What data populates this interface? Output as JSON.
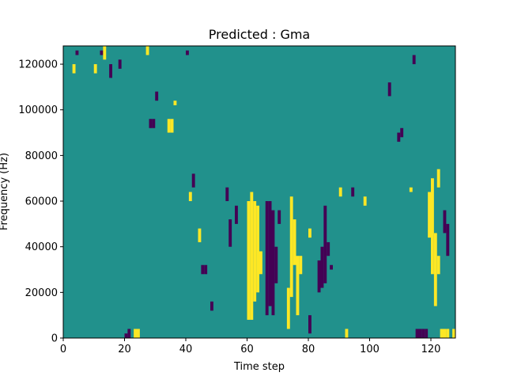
{
  "chart_data": {
    "type": "heatmap",
    "title": "Predicted : Gma",
    "xlabel": "Time step",
    "ylabel": "Frequency (Hz)",
    "xlim": [
      0,
      128
    ],
    "ylim": [
      0,
      128000
    ],
    "x_ticks": [
      0,
      20,
      40,
      60,
      80,
      100,
      120
    ],
    "y_ticks": [
      0,
      20000,
      40000,
      60000,
      80000,
      100000,
      120000
    ],
    "x_tick_labels": [
      "0",
      "20",
      "40",
      "60",
      "80",
      "100",
      "120"
    ],
    "y_tick_labels": [
      "0",
      "20000",
      "40000",
      "60000",
      "80000",
      "100000",
      "120000"
    ],
    "grid": false,
    "colormap": "viridis",
    "cell_height_hz": 2000,
    "colors": {
      "background": "#21918c",
      "low": "#440154",
      "high": "#fde725"
    },
    "low_cells": [
      {
        "t": 20,
        "f_start": 0,
        "f_end": 2000
      },
      {
        "t": 21,
        "f_start": 0,
        "f_end": 4000
      },
      {
        "t": 115,
        "f_start": 0,
        "f_end": 4000
      },
      {
        "t": 116,
        "f_start": 0,
        "f_end": 4000
      },
      {
        "t": 117,
        "f_start": 0,
        "f_end": 4000
      },
      {
        "t": 118,
        "f_start": 0,
        "f_end": 4000
      },
      {
        "t": 4,
        "f_start": 124000,
        "f_end": 126000
      },
      {
        "t": 12,
        "f_start": 124000,
        "f_end": 126000
      },
      {
        "t": 15,
        "f_start": 114000,
        "f_end": 120000
      },
      {
        "t": 18,
        "f_start": 118000,
        "f_end": 122000
      },
      {
        "t": 28,
        "f_start": 92000,
        "f_end": 96000
      },
      {
        "t": 29,
        "f_start": 92000,
        "f_end": 96000
      },
      {
        "t": 30,
        "f_start": 104000,
        "f_end": 108000
      },
      {
        "t": 40,
        "f_start": 124000,
        "f_end": 126000
      },
      {
        "t": 42,
        "f_start": 66000,
        "f_end": 72000
      },
      {
        "t": 45,
        "f_start": 28000,
        "f_end": 32000
      },
      {
        "t": 46,
        "f_start": 28000,
        "f_end": 32000
      },
      {
        "t": 48,
        "f_start": 12000,
        "f_end": 16000
      },
      {
        "t": 53,
        "f_start": 60000,
        "f_end": 66000
      },
      {
        "t": 54,
        "f_start": 40000,
        "f_end": 52000
      },
      {
        "t": 56,
        "f_start": 50000,
        "f_end": 58000
      },
      {
        "t": 66,
        "f_start": 10000,
        "f_end": 60000
      },
      {
        "t": 67,
        "f_start": 14000,
        "f_end": 60000
      },
      {
        "t": 68,
        "f_start": 10000,
        "f_end": 56000
      },
      {
        "t": 69,
        "f_start": 24000,
        "f_end": 40000
      },
      {
        "t": 70,
        "f_start": 50000,
        "f_end": 56000
      },
      {
        "t": 80,
        "f_start": 2000,
        "f_end": 10000
      },
      {
        "t": 83,
        "f_start": 20000,
        "f_end": 34000
      },
      {
        "t": 84,
        "f_start": 22000,
        "f_end": 40000
      },
      {
        "t": 85,
        "f_start": 24000,
        "f_end": 58000
      },
      {
        "t": 86,
        "f_start": 36000,
        "f_end": 42000
      },
      {
        "t": 87,
        "f_start": 30000,
        "f_end": 32000
      },
      {
        "t": 94,
        "f_start": 62000,
        "f_end": 66000
      },
      {
        "t": 106,
        "f_start": 106000,
        "f_end": 112000
      },
      {
        "t": 109,
        "f_start": 86000,
        "f_end": 90000
      },
      {
        "t": 110,
        "f_start": 88000,
        "f_end": 92000
      },
      {
        "t": 114,
        "f_start": 120000,
        "f_end": 124000
      },
      {
        "t": 124,
        "f_start": 46000,
        "f_end": 56000
      },
      {
        "t": 125,
        "f_start": 36000,
        "f_end": 50000
      }
    ],
    "high_cells": [
      {
        "t": 23,
        "f_start": 0,
        "f_end": 4000
      },
      {
        "t": 24,
        "f_start": 0,
        "f_end": 4000
      },
      {
        "t": 34,
        "f_start": 90000,
        "f_end": 96000
      },
      {
        "t": 35,
        "f_start": 90000,
        "f_end": 96000
      },
      {
        "t": 3,
        "f_start": 116000,
        "f_end": 120000
      },
      {
        "t": 10,
        "f_start": 116000,
        "f_end": 120000
      },
      {
        "t": 13,
        "f_start": 122000,
        "f_end": 128000
      },
      {
        "t": 27,
        "f_start": 124000,
        "f_end": 128000
      },
      {
        "t": 36,
        "f_start": 102000,
        "f_end": 104000
      },
      {
        "t": 41,
        "f_start": 60000,
        "f_end": 64000
      },
      {
        "t": 44,
        "f_start": 42000,
        "f_end": 48000
      },
      {
        "t": 60,
        "f_start": 8000,
        "f_end": 60000
      },
      {
        "t": 61,
        "f_start": 8000,
        "f_end": 64000
      },
      {
        "t": 62,
        "f_start": 16000,
        "f_end": 60000
      },
      {
        "t": 63,
        "f_start": 20000,
        "f_end": 58000
      },
      {
        "t": 64,
        "f_start": 28000,
        "f_end": 38000
      },
      {
        "t": 73,
        "f_start": 4000,
        "f_end": 22000
      },
      {
        "t": 74,
        "f_start": 18000,
        "f_end": 62000
      },
      {
        "t": 75,
        "f_start": 32000,
        "f_end": 52000
      },
      {
        "t": 76,
        "f_start": 10000,
        "f_end": 36000
      },
      {
        "t": 80,
        "f_start": 44000,
        "f_end": 48000
      },
      {
        "t": 77,
        "f_start": 28000,
        "f_end": 36000
      },
      {
        "t": 90,
        "f_start": 62000,
        "f_end": 66000
      },
      {
        "t": 92,
        "f_start": 0,
        "f_end": 4000
      },
      {
        "t": 98,
        "f_start": 58000,
        "f_end": 62000
      },
      {
        "t": 120,
        "f_start": 28000,
        "f_end": 70000
      },
      {
        "t": 119,
        "f_start": 44000,
        "f_end": 64000
      },
      {
        "t": 121,
        "f_start": 14000,
        "f_end": 46000
      },
      {
        "t": 122,
        "f_start": 28000,
        "f_end": 36000
      },
      {
        "t": 123,
        "f_start": 0,
        "f_end": 4000
      },
      {
        "t": 124,
        "f_start": 0,
        "f_end": 4000
      },
      {
        "t": 125,
        "f_start": 0,
        "f_end": 4000
      },
      {
        "t": 127,
        "f_start": 0,
        "f_end": 4000
      },
      {
        "t": 122,
        "f_start": 66000,
        "f_end": 74000
      },
      {
        "t": 113,
        "f_start": 64000,
        "f_end": 66000
      }
    ]
  }
}
